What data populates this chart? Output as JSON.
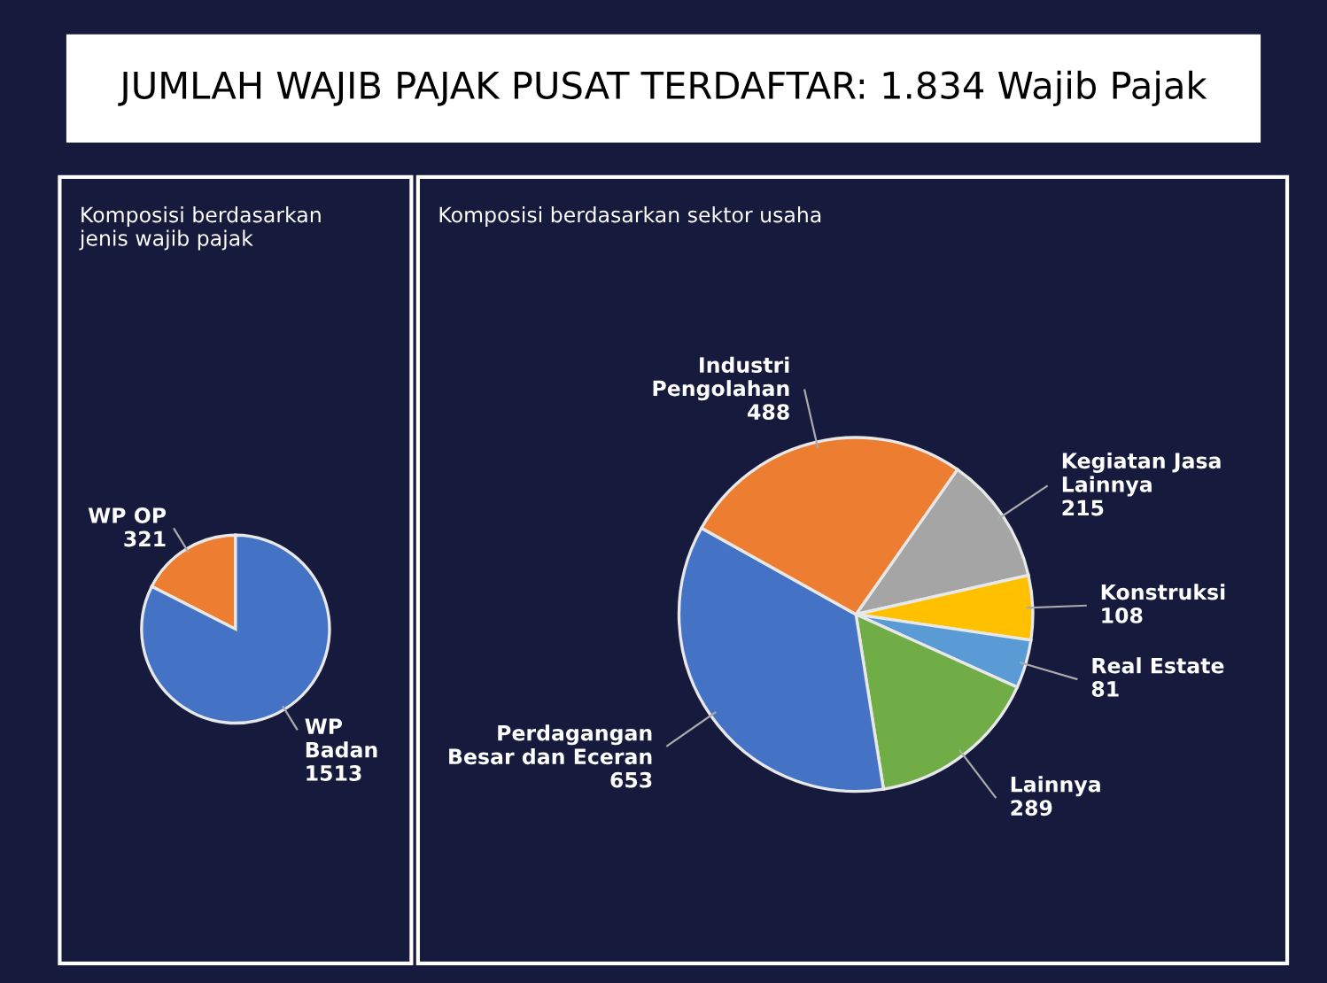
{
  "chart_data": [
    {
      "type": "pie",
      "title": "JUMLAH WAJIB PAJAK PUSAT TERDAFTAR: 1.834 Wajib Pajak",
      "subtitle": "Komposisi berdasarkan\njenis wajib pajak",
      "categories": [
        "WP OP",
        "WP Badan"
      ],
      "values": [
        321,
        1513
      ],
      "colors": [
        "#ed7d31",
        "#4472c4"
      ],
      "data_labels": true
    },
    {
      "type": "pie",
      "subtitle": "Komposisi berdasarkan sektor usaha",
      "categories": [
        "Kegiatan Jasa Lainnya",
        "Konstruksi",
        "Real Estate",
        "Lainnya",
        "Perdagangan Besar dan Eceran",
        "Industri Pengolahan"
      ],
      "values": [
        215,
        108,
        81,
        289,
        653,
        488
      ],
      "colors": [
        "#a5a5a5",
        "#ffc000",
        "#5b9bd5",
        "#70ad47",
        "#4472c4",
        "#ed7d31"
      ],
      "data_labels": true
    }
  ]
}
